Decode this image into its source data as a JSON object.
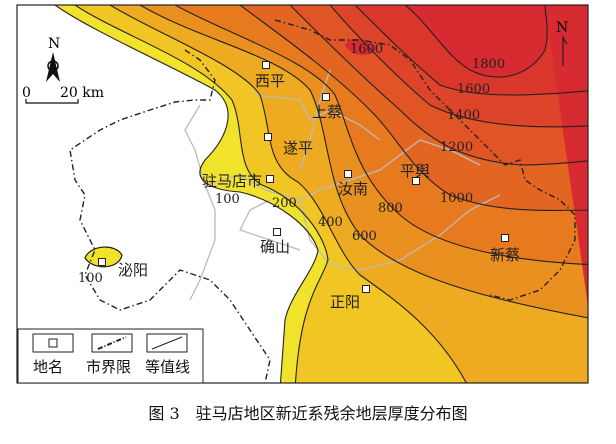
{
  "map": {
    "north_label": "N",
    "scale": {
      "zero": "0",
      "distance": "20 km"
    },
    "places": [
      "西平",
      "上蔡",
      "遂平",
      "驻马店市",
      "汝南",
      "平舆",
      "确山",
      "泌阳",
      "新蔡",
      "正阳"
    ],
    "contour_labels": [
      "100",
      "100",
      "200",
      "400",
      "600",
      "800",
      "1000",
      "1200",
      "1400",
      "1600",
      "1800",
      "1600"
    ],
    "band_colors": [
      "#f1e22c",
      "#f1c624",
      "#eeaa20",
      "#ea9020",
      "#e77a1f",
      "#e36522",
      "#e05426",
      "#dd4429",
      "#da362c",
      "#d82a31"
    ],
    "legend": {
      "place": "地名",
      "boundary": "市界限",
      "contour": "等值线"
    }
  },
  "caption": "图 3　驻马店地区新近系残余地层厚度分布图"
}
